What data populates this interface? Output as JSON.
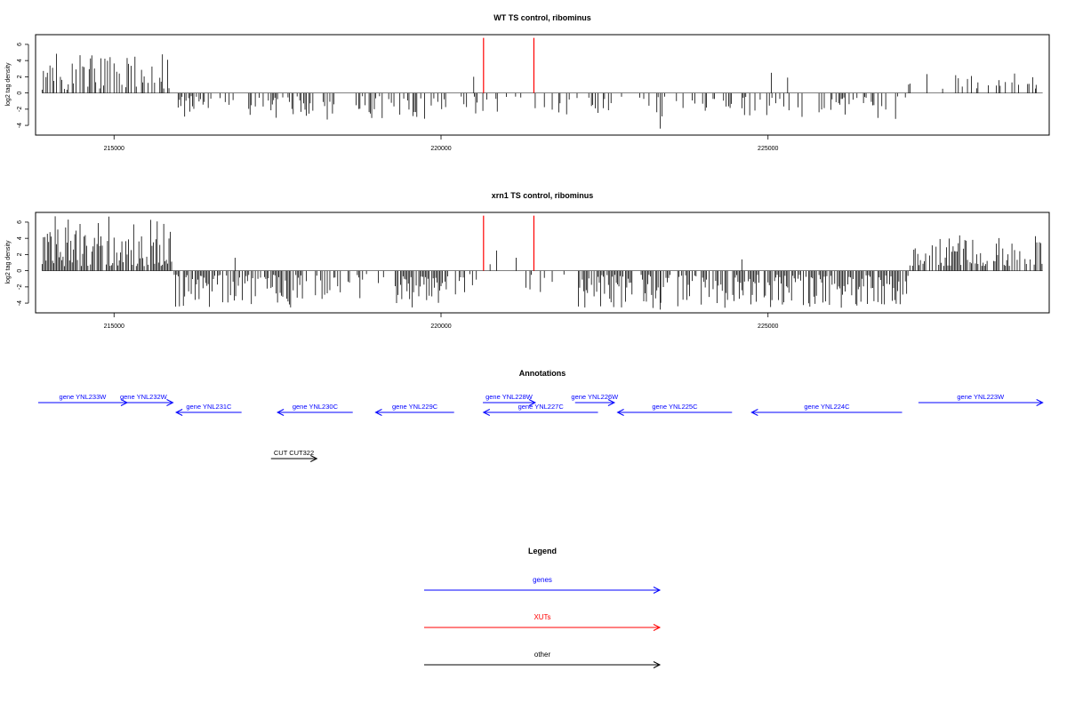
{
  "chart_data": [
    {
      "type": "bar",
      "title": "WT TS control, ribominus",
      "ylabel": "log2 tag density",
      "xlim": [
        213800,
        229300
      ],
      "ylim": [
        -5.2,
        7.2
      ],
      "xticks": [
        {
          "value": 215000,
          "label": "215000"
        },
        {
          "value": 220000,
          "label": "220000"
        },
        {
          "value": 225000,
          "label": "225000"
        }
      ],
      "yticks": [
        {
          "value": -4,
          "label": "-4"
        },
        {
          "value": -2,
          "label": "-2"
        },
        {
          "value": 0,
          "label": "0"
        },
        {
          "value": 2,
          "label": "2"
        },
        {
          "value": 4,
          "label": "4"
        },
        {
          "value": 6,
          "label": "6"
        }
      ],
      "grid": false,
      "regions": [
        {
          "start": 213900,
          "end": 215900,
          "min": 0.4,
          "max": 5.2,
          "density": 0.55
        },
        {
          "start": 215900,
          "end": 219350,
          "min": -3.3,
          "max": -0.4,
          "density": 0.38
        },
        {
          "start": 219350,
          "end": 220600,
          "min": -3.2,
          "max": -0.4,
          "density": 0.35
        },
        {
          "start": 220600,
          "end": 221400,
          "min": -2.8,
          "max": -0.4,
          "density": 0.25
        },
        {
          "start": 221400,
          "end": 222600,
          "min": -3.0,
          "max": -0.4,
          "density": 0.35
        },
        {
          "start": 222600,
          "end": 227150,
          "min": -3.2,
          "max": -0.4,
          "density": 0.3
        },
        {
          "start": 227150,
          "end": 229200,
          "min": 0.5,
          "max": 2.5,
          "density": 0.12
        }
      ],
      "spikes": [
        {
          "x": 220500,
          "y": 2.0
        },
        {
          "x": 223350,
          "y": -4.4
        },
        {
          "x": 225050,
          "y": 2.5
        },
        {
          "x": 225300,
          "y": 1.9
        },
        {
          "x": 226950,
          "y": -3.2
        },
        {
          "x": 229100,
          "y": 1.0
        }
      ],
      "markers": [
        {
          "x": 220650,
          "y": 6.8,
          "color": "#ff0000"
        },
        {
          "x": 221420,
          "y": 6.8,
          "color": "#ff0000"
        }
      ]
    },
    {
      "type": "bar",
      "title": "xrn1 TS control, ribominus",
      "ylabel": "log2 tag density",
      "xlim": [
        213800,
        229300
      ],
      "ylim": [
        -5.2,
        7.2
      ],
      "xticks": [
        {
          "value": 215000,
          "label": "215000"
        },
        {
          "value": 220000,
          "label": "220000"
        },
        {
          "value": 225000,
          "label": "225000"
        }
      ],
      "yticks": [
        {
          "value": -4,
          "label": "-4"
        },
        {
          "value": -2,
          "label": "-2"
        },
        {
          "value": 0,
          "label": "0"
        },
        {
          "value": 2,
          "label": "2"
        },
        {
          "value": 4,
          "label": "4"
        },
        {
          "value": 6,
          "label": "6"
        }
      ],
      "grid": false,
      "regions": [
        {
          "start": 213900,
          "end": 215900,
          "min": 0.5,
          "max": 6.8,
          "density": 0.85
        },
        {
          "start": 215900,
          "end": 217900,
          "min": -4.6,
          "max": -0.5,
          "density": 0.75
        },
        {
          "start": 217900,
          "end": 219300,
          "min": -3.8,
          "max": -0.4,
          "density": 0.4
        },
        {
          "start": 219300,
          "end": 220100,
          "min": -4.6,
          "max": -0.6,
          "density": 0.85
        },
        {
          "start": 220100,
          "end": 220600,
          "min": -3.0,
          "max": -0.4,
          "density": 0.3
        },
        {
          "start": 220600,
          "end": 222100,
          "min": -3.0,
          "max": -0.4,
          "density": 0.18
        },
        {
          "start": 222100,
          "end": 224700,
          "min": -4.6,
          "max": -0.5,
          "density": 0.7
        },
        {
          "start": 224700,
          "end": 227150,
          "min": -4.6,
          "max": -0.5,
          "density": 0.75
        },
        {
          "start": 227150,
          "end": 229200,
          "min": 0.6,
          "max": 4.5,
          "density": 0.7
        }
      ],
      "spikes": [
        {
          "x": 220850,
          "y": 2.5
        },
        {
          "x": 221150,
          "y": 1.6
        },
        {
          "x": 220750,
          "y": 0.8
        },
        {
          "x": 216850,
          "y": 1.6
        },
        {
          "x": 224600,
          "y": 1.4
        },
        {
          "x": 223350,
          "y": -4.8
        }
      ],
      "markers": [
        {
          "x": 220650,
          "y": 6.8,
          "color": "#ff0000"
        },
        {
          "x": 221420,
          "y": 6.8,
          "color": "#ff0000"
        }
      ]
    }
  ],
  "annotations": {
    "title": "Annotations",
    "features": [
      {
        "label": "gene YNL233W",
        "start": 213840,
        "end": 215200,
        "dir": "right",
        "row": 0,
        "color": "#0000ff"
      },
      {
        "label": "gene YNL232W",
        "start": 215000,
        "end": 215900,
        "dir": "right",
        "row": 0,
        "color": "#0000ff"
      },
      {
        "label": "gene YNL231C",
        "start": 215950,
        "end": 216950,
        "dir": "left",
        "row": 1,
        "color": "#0000ff"
      },
      {
        "label": "gene YNL230C",
        "start": 217500,
        "end": 218650,
        "dir": "left",
        "row": 1,
        "color": "#0000ff"
      },
      {
        "label": "gene YNL229C",
        "start": 219000,
        "end": 220200,
        "dir": "left",
        "row": 1,
        "color": "#0000ff"
      },
      {
        "label": "gene YNL228W",
        "start": 220640,
        "end": 221440,
        "dir": "right",
        "row": 0,
        "color": "#0000ff"
      },
      {
        "label": "gene YNL227C",
        "start": 220650,
        "end": 222400,
        "dir": "left",
        "row": 1,
        "color": "#0000ff"
      },
      {
        "label": "gene YNL226W",
        "start": 222050,
        "end": 222650,
        "dir": "right",
        "row": 0,
        "color": "#0000ff"
      },
      {
        "label": "gene YNL225C",
        "start": 222700,
        "end": 224450,
        "dir": "left",
        "row": 1,
        "color": "#0000ff"
      },
      {
        "label": "gene YNL224C",
        "start": 224750,
        "end": 227050,
        "dir": "left",
        "row": 1,
        "color": "#0000ff"
      },
      {
        "label": "gene YNL223W",
        "start": 227300,
        "end": 229200,
        "dir": "right",
        "row": 0,
        "color": "#0000ff"
      },
      {
        "label": "CUT CUT322",
        "start": 217400,
        "end": 218100,
        "dir": "right",
        "row": 2,
        "color": "#000000"
      }
    ]
  },
  "legend": {
    "title": "Legend",
    "items": [
      {
        "label": "genes",
        "color": "#0000ff"
      },
      {
        "label": "XUTs",
        "color": "#ff0000"
      },
      {
        "label": "other",
        "color": "#000000"
      }
    ]
  }
}
